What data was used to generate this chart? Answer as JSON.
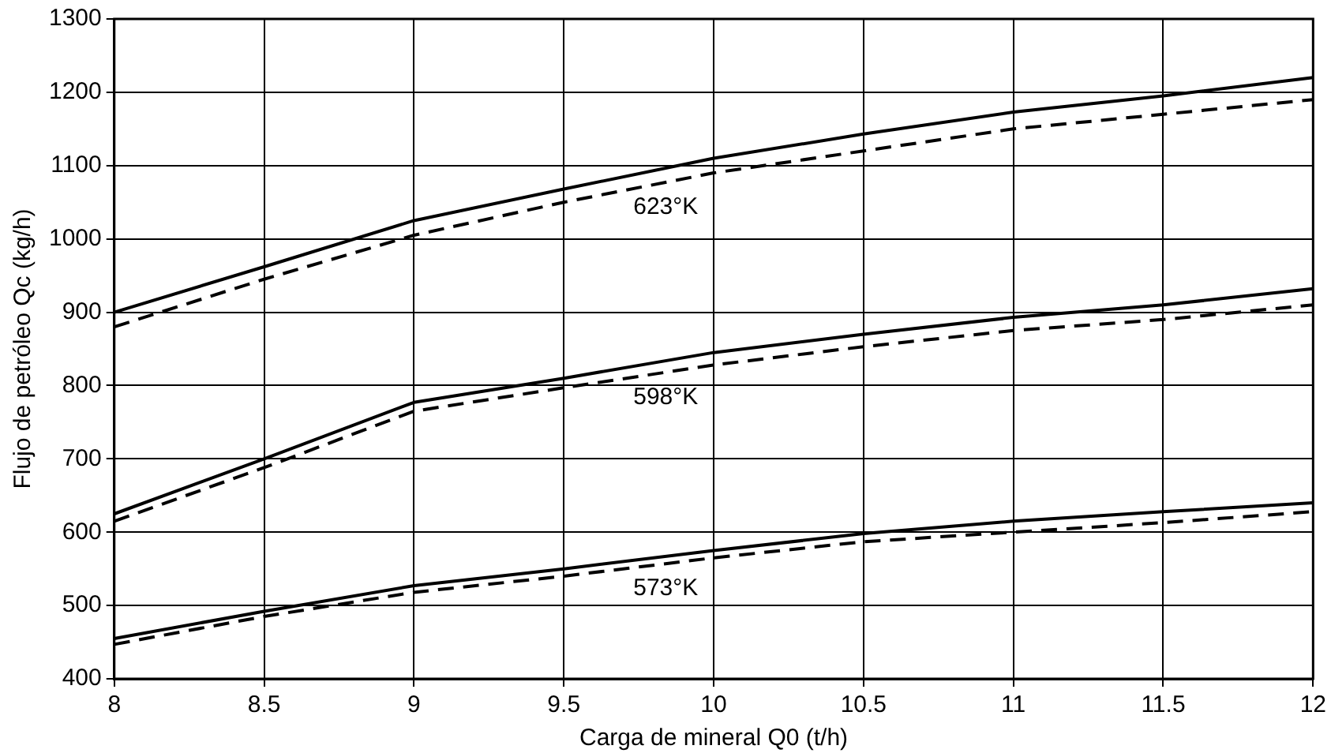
{
  "chart_data": {
    "type": "line",
    "xlabel": "Carga de mineral Q0 (t/h)",
    "ylabel": "Flujo de petróleo Qc (kg/h)",
    "x": [
      8,
      8.5,
      9,
      9.5,
      10,
      10.5,
      11,
      11.5,
      12
    ],
    "series": [
      {
        "color": "#000000",
        "line_style": "solid",
        "values": [
          900,
          962,
          1025,
          1068,
          1110,
          1143,
          1173,
          1195,
          1220
        ]
      },
      {
        "name": "623°K",
        "color": "#000000",
        "line_style": "dashed",
        "values": [
          880,
          945,
          1005,
          1050,
          1090,
          1120,
          1150,
          1170,
          1190
        ]
      },
      {
        "color": "#000000",
        "line_style": "solid",
        "values": [
          625,
          700,
          777,
          810,
          845,
          870,
          893,
          910,
          932
        ]
      },
      {
        "name": "598°K",
        "color": "#000000",
        "line_style": "dashed",
        "values": [
          615,
          688,
          765,
          797,
          828,
          853,
          875,
          890,
          910
        ]
      },
      {
        "color": "#000000",
        "line_style": "solid",
        "values": [
          455,
          492,
          527,
          550,
          575,
          598,
          615,
          628,
          640
        ]
      },
      {
        "name": "573°K",
        "color": "#000000",
        "line_style": "dashed",
        "values": [
          447,
          485,
          518,
          540,
          565,
          587,
          600,
          613,
          628
        ]
      }
    ],
    "xlim": [
      8,
      12
    ],
    "xticks": [
      8,
      8.5,
      9,
      9.5,
      10,
      10.5,
      11,
      11.5,
      12
    ],
    "ylim": [
      400,
      1300
    ],
    "yticks": [
      400,
      500,
      600,
      700,
      800,
      900,
      1000,
      1100,
      1200,
      1300
    ],
    "grid": true,
    "legend": false,
    "marker": "none"
  }
}
